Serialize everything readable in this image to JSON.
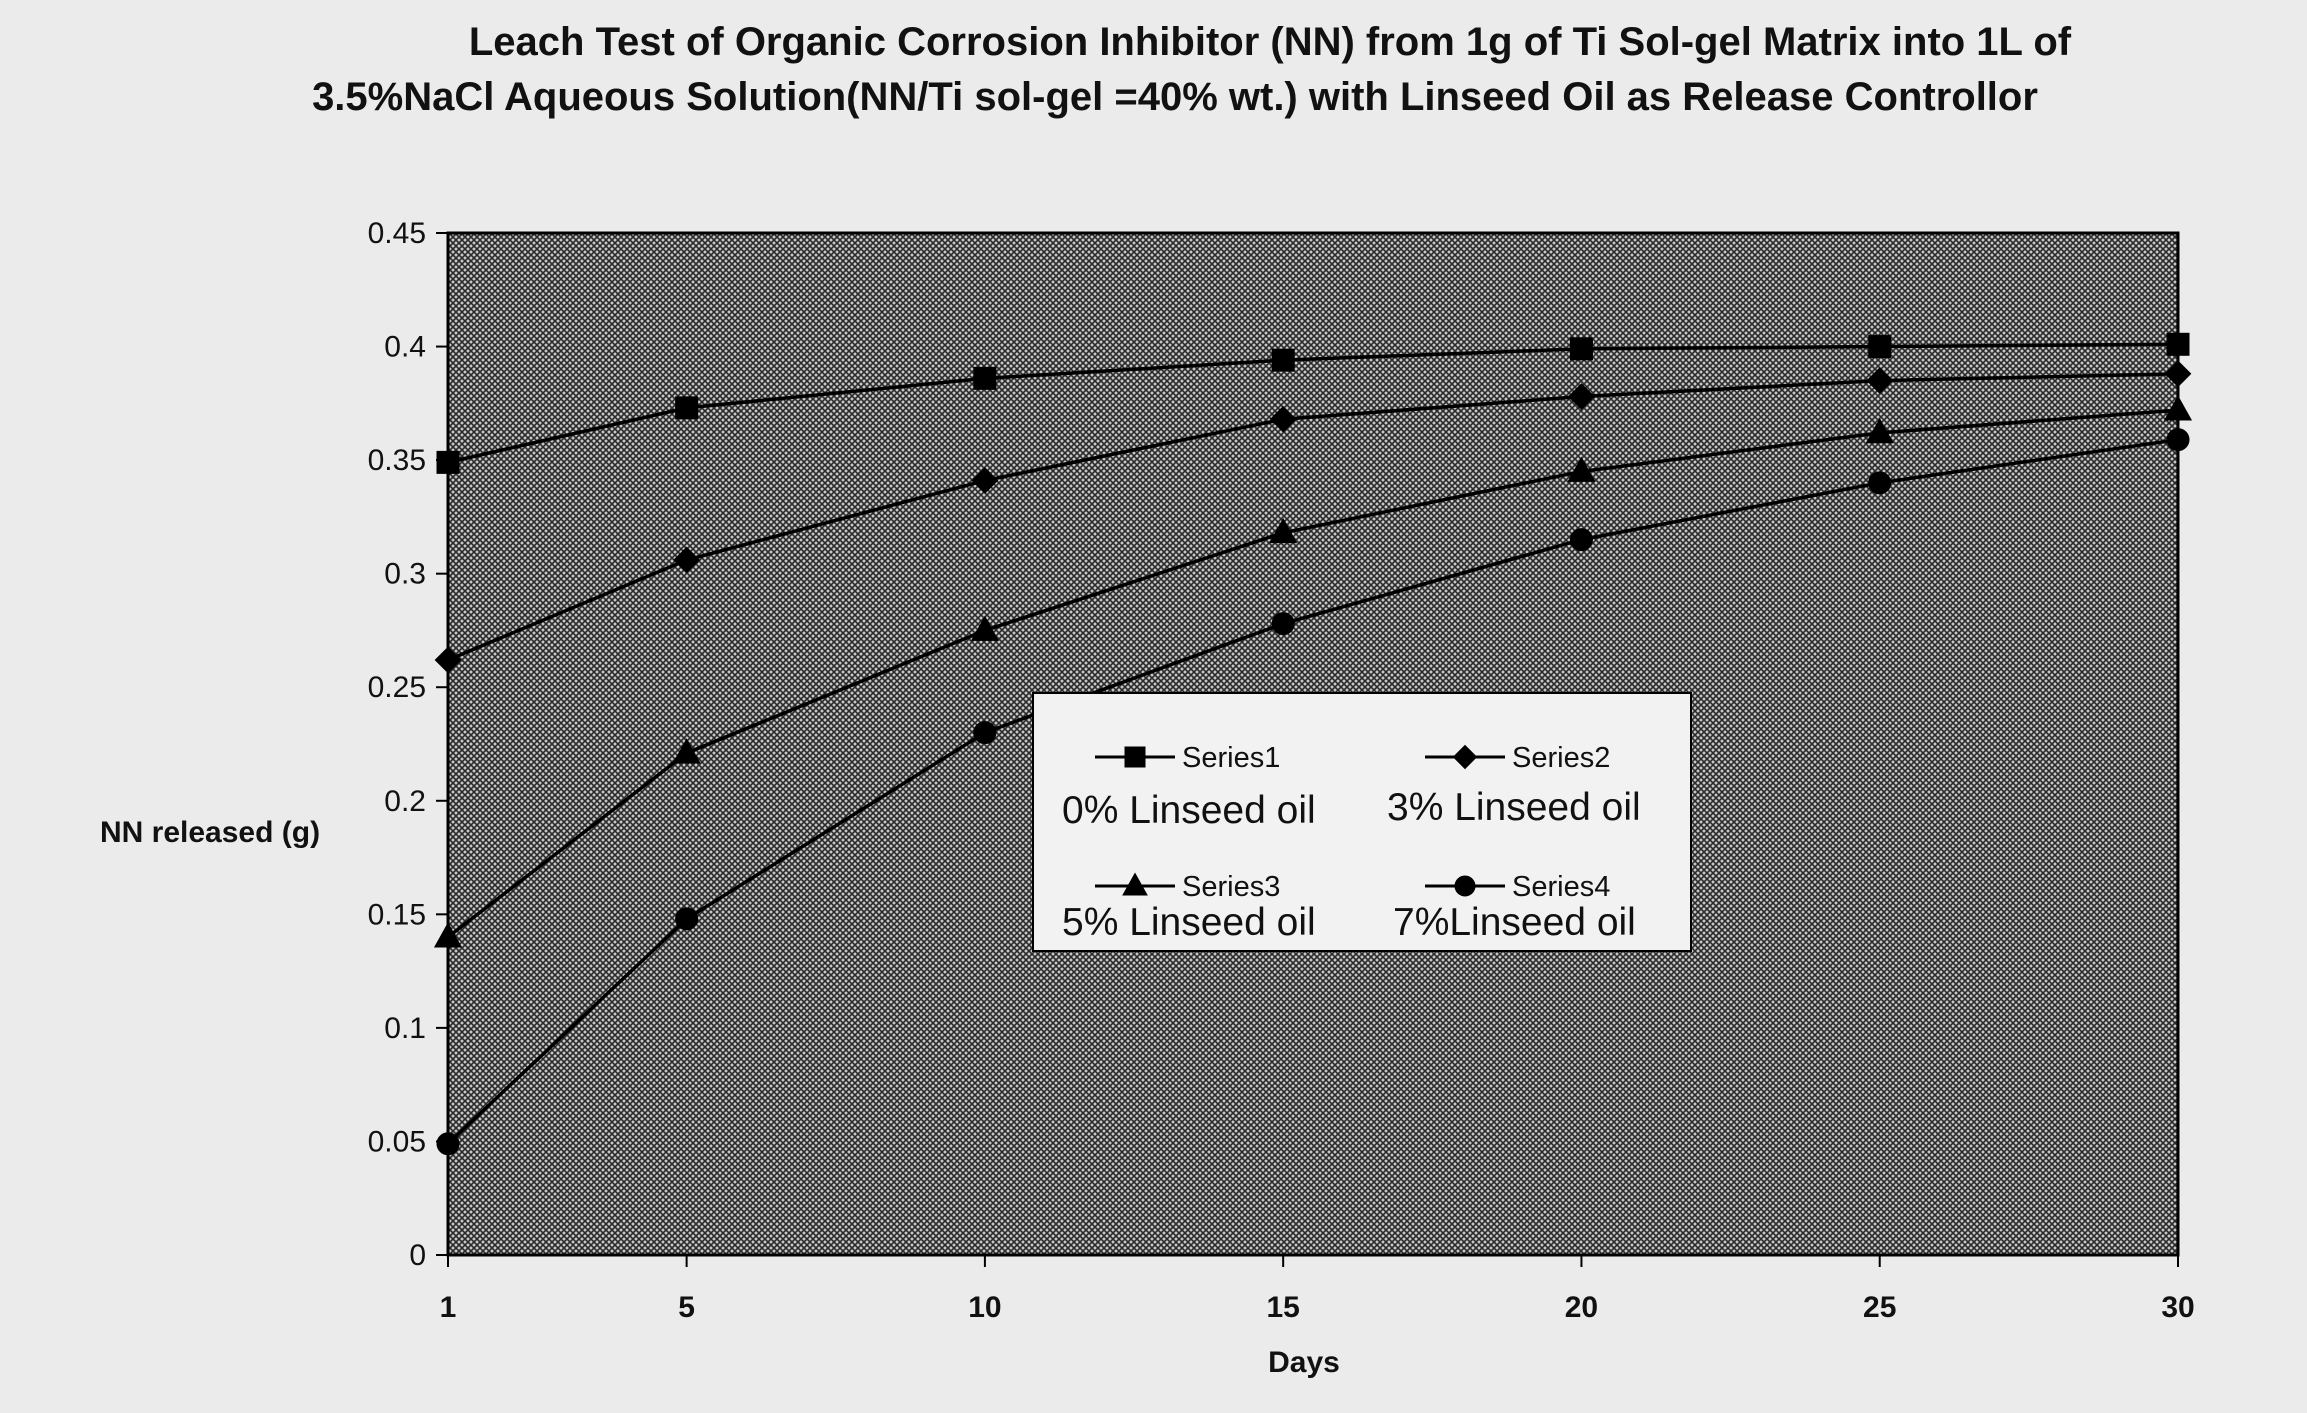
{
  "chart_data": {
    "type": "line",
    "title_line1": "Leach Test of Organic Corrosion Inhibitor (NN) from 1g of Ti Sol-gel Matrix into 1L of",
    "title_line2": "3.5%NaCl Aqueous Solution(NN/Ti sol-gel =40% wt.) with Linseed Oil as Release Controllor",
    "xlabel": "Days",
    "ylabel": "NN released (g)",
    "x": [
      "1",
      "5",
      "10",
      "15",
      "20",
      "25",
      "30"
    ],
    "ylim": [
      0,
      0.45
    ],
    "yticks": [
      "0",
      "0.05",
      "0.1",
      "0.15",
      "0.2",
      "0.25",
      "0.3",
      "0.35",
      "0.4",
      "0.45"
    ],
    "grid": false,
    "legend_position": "center",
    "series": [
      {
        "name": "Series1",
        "annotation": "0% Linseed oil",
        "marker": "square",
        "values": [
          0.349,
          0.373,
          0.386,
          0.394,
          0.399,
          0.4,
          0.401
        ]
      },
      {
        "name": "Series2",
        "annotation": "3% Linseed oil",
        "marker": "diamond",
        "values": [
          0.262,
          0.306,
          0.341,
          0.368,
          0.378,
          0.385,
          0.388
        ]
      },
      {
        "name": "Series3",
        "annotation": "5% Linseed oil",
        "marker": "triangle",
        "values": [
          0.14,
          0.221,
          0.275,
          0.318,
          0.345,
          0.362,
          0.372
        ]
      },
      {
        "name": "Series4",
        "annotation": "7%Linseed oil",
        "marker": "circle",
        "values": [
          0.049,
          0.148,
          0.23,
          0.278,
          0.315,
          0.34,
          0.359
        ]
      }
    ],
    "colors": {
      "page_background": "#ebebeb",
      "plot_pattern_light": "#c8c8c8",
      "plot_pattern_dark": "#2a2a2a",
      "line": "#000000",
      "legend_background": "#f2f2f2"
    }
  }
}
